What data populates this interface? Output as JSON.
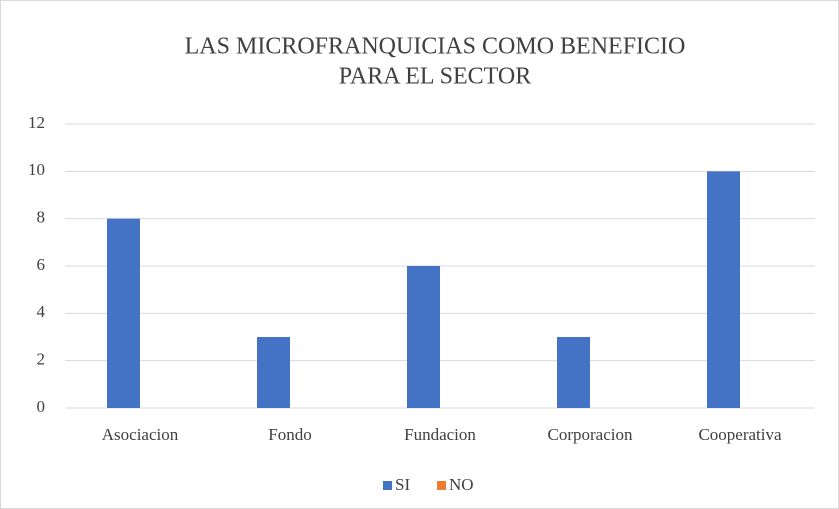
{
  "chart_data": {
    "type": "bar",
    "title": [
      "LAS MICROFRANQUICIAS COMO BENEFICIO",
      "PARA EL SECTOR"
    ],
    "categories": [
      "Asociacion",
      "Fondo",
      "Fundacion",
      "Corporacion",
      "Cooperativa"
    ],
    "series": [
      {
        "name": "SI",
        "color": "#4472c4",
        "values": [
          8,
          3,
          6,
          3,
          10
        ]
      },
      {
        "name": "NO",
        "color": "#ed7d31",
        "values": [
          0,
          0,
          0,
          0,
          0
        ]
      }
    ],
    "ylim": [
      0,
      12
    ],
    "yticks": [
      0,
      2,
      4,
      6,
      8,
      10,
      12
    ],
    "grid": true,
    "legend": "bottom"
  }
}
